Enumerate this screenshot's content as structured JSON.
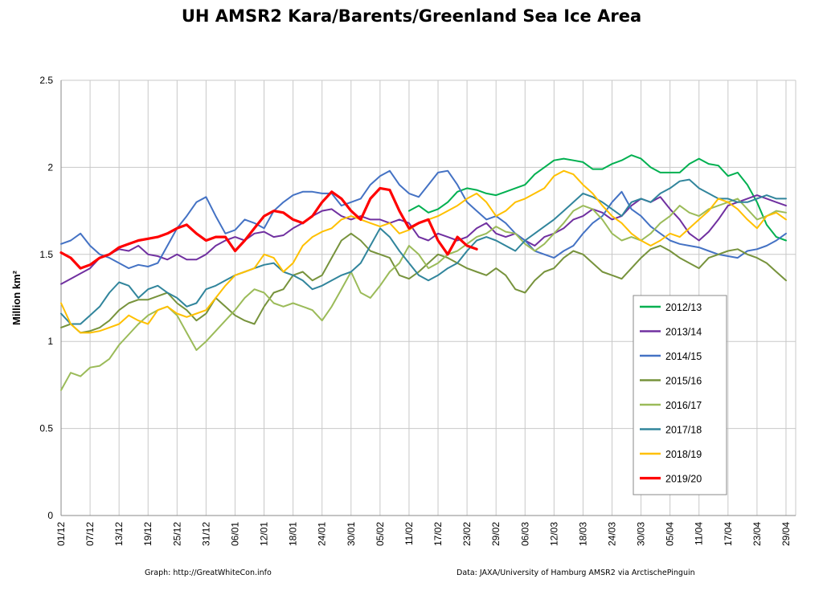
{
  "chart_data": {
    "type": "line",
    "title": "UH AMSR2 Kara/Barents/Greenland Sea Ice Area",
    "xlabel": "",
    "ylabel": "Million km²",
    "ylim": [
      0,
      2.5
    ],
    "yticks": [
      "0",
      "0.5",
      "1",
      "1.5",
      "2",
      "2.5"
    ],
    "x_tick_labels": [
      "01/12",
      "07/12",
      "13/12",
      "19/12",
      "25/12",
      "31/12",
      "06/01",
      "12/01",
      "18/01",
      "24/01",
      "30/01",
      "05/02",
      "11/02",
      "17/02",
      "23/02",
      "29/02",
      "06/03",
      "12/03",
      "18/03",
      "24/03",
      "30/03",
      "05/04",
      "11/04",
      "17/04",
      "23/04",
      "29/04"
    ],
    "x_unit": "day offset from 01/12 (every 2 days)",
    "grid": "vertical every 6 days, horizontal at y ticks",
    "legend_position": "right",
    "series": [
      {
        "name": "2012/13",
        "color": "#00b050",
        "start_day": 72,
        "values": [
          1.75,
          1.78,
          1.74,
          1.76,
          1.8,
          1.86,
          1.88,
          1.87,
          1.85,
          1.84,
          1.86,
          1.88,
          1.9,
          1.96,
          2.0,
          2.04,
          2.05,
          2.04,
          2.03,
          1.99,
          1.99,
          2.02,
          2.04,
          2.07,
          2.05,
          2.0,
          1.97,
          1.97,
          1.97,
          2.02,
          2.05,
          2.02,
          2.01,
          1.95,
          1.97,
          1.9,
          1.8,
          1.67,
          1.6,
          1.58
        ]
      },
      {
        "name": "2013/14",
        "color": "#7030a0",
        "values": [
          1.33,
          1.36,
          1.39,
          1.42,
          1.48,
          1.5,
          1.53,
          1.52,
          1.55,
          1.5,
          1.49,
          1.47,
          1.5,
          1.47,
          1.47,
          1.5,
          1.55,
          1.58,
          1.6,
          1.58,
          1.62,
          1.63,
          1.6,
          1.61,
          1.65,
          1.68,
          1.72,
          1.75,
          1.76,
          1.72,
          1.7,
          1.72,
          1.7,
          1.7,
          1.68,
          1.7,
          1.68,
          1.6,
          1.58,
          1.62,
          1.6,
          1.58,
          1.6,
          1.65,
          1.68,
          1.62,
          1.6,
          1.62,
          1.58,
          1.55,
          1.6,
          1.62,
          1.65,
          1.7,
          1.72,
          1.76,
          1.74,
          1.7,
          1.72,
          1.78,
          1.82,
          1.8,
          1.83,
          1.76,
          1.7,
          1.62,
          1.58,
          1.63,
          1.7,
          1.78,
          1.8,
          1.82,
          1.84,
          1.82,
          1.8,
          1.78
        ]
      },
      {
        "name": "2014/15",
        "color": "#4472c4",
        "values": [
          1.56,
          1.58,
          1.62,
          1.55,
          1.5,
          1.48,
          1.45,
          1.42,
          1.44,
          1.43,
          1.45,
          1.55,
          1.65,
          1.72,
          1.8,
          1.83,
          1.72,
          1.62,
          1.64,
          1.7,
          1.68,
          1.65,
          1.75,
          1.8,
          1.84,
          1.86,
          1.86,
          1.85,
          1.85,
          1.78,
          1.8,
          1.82,
          1.9,
          1.95,
          1.98,
          1.9,
          1.85,
          1.83,
          1.9,
          1.97,
          1.98,
          1.9,
          1.8,
          1.75,
          1.7,
          1.72,
          1.68,
          1.62,
          1.58,
          1.52,
          1.5,
          1.48,
          1.52,
          1.55,
          1.62,
          1.68,
          1.72,
          1.8,
          1.86,
          1.76,
          1.72,
          1.66,
          1.62,
          1.58,
          1.56,
          1.55,
          1.54,
          1.52,
          1.5,
          1.49,
          1.48,
          1.52,
          1.53,
          1.55,
          1.58,
          1.62
        ]
      },
      {
        "name": "2015/16",
        "color": "#77933c",
        "values": [
          1.08,
          1.1,
          1.05,
          1.06,
          1.08,
          1.12,
          1.18,
          1.22,
          1.24,
          1.24,
          1.26,
          1.28,
          1.22,
          1.18,
          1.12,
          1.16,
          1.25,
          1.2,
          1.15,
          1.12,
          1.1,
          1.2,
          1.28,
          1.3,
          1.38,
          1.4,
          1.35,
          1.38,
          1.48,
          1.58,
          1.62,
          1.58,
          1.52,
          1.5,
          1.48,
          1.38,
          1.36,
          1.4,
          1.45,
          1.5,
          1.48,
          1.45,
          1.42,
          1.4,
          1.38,
          1.42,
          1.38,
          1.3,
          1.28,
          1.35,
          1.4,
          1.42,
          1.48,
          1.52,
          1.5,
          1.45,
          1.4,
          1.38,
          1.36,
          1.42,
          1.48,
          1.53,
          1.55,
          1.52,
          1.48,
          1.45,
          1.42,
          1.48,
          1.5,
          1.52,
          1.53,
          1.5,
          1.48,
          1.45,
          1.4,
          1.35
        ]
      },
      {
        "name": "2016/17",
        "color": "#9bbb59",
        "values": [
          0.72,
          0.82,
          0.8,
          0.85,
          0.86,
          0.9,
          0.98,
          1.04,
          1.1,
          1.15,
          1.18,
          1.2,
          1.15,
          1.05,
          0.95,
          1.0,
          1.06,
          1.12,
          1.18,
          1.25,
          1.3,
          1.28,
          1.22,
          1.2,
          1.22,
          1.2,
          1.18,
          1.12,
          1.2,
          1.3,
          1.4,
          1.28,
          1.25,
          1.32,
          1.4,
          1.45,
          1.55,
          1.5,
          1.42,
          1.45,
          1.5,
          1.52,
          1.56,
          1.6,
          1.62,
          1.66,
          1.63,
          1.62,
          1.56,
          1.52,
          1.56,
          1.62,
          1.68,
          1.75,
          1.78,
          1.76,
          1.7,
          1.62,
          1.58,
          1.6,
          1.58,
          1.62,
          1.68,
          1.72,
          1.78,
          1.74,
          1.72,
          1.76,
          1.78,
          1.8,
          1.82,
          1.76,
          1.7,
          1.72,
          1.75,
          1.74
        ]
      },
      {
        "name": "2017/18",
        "color": "#31859c",
        "values": [
          1.16,
          1.1,
          1.1,
          1.15,
          1.2,
          1.28,
          1.34,
          1.32,
          1.25,
          1.3,
          1.32,
          1.28,
          1.25,
          1.2,
          1.22,
          1.3,
          1.32,
          1.35,
          1.38,
          1.4,
          1.42,
          1.44,
          1.45,
          1.4,
          1.38,
          1.35,
          1.3,
          1.32,
          1.35,
          1.38,
          1.4,
          1.45,
          1.55,
          1.65,
          1.6,
          1.52,
          1.45,
          1.38,
          1.35,
          1.38,
          1.42,
          1.45,
          1.52,
          1.58,
          1.6,
          1.58,
          1.55,
          1.52,
          1.58,
          1.62,
          1.66,
          1.7,
          1.75,
          1.8,
          1.85,
          1.83,
          1.8,
          1.76,
          1.72,
          1.8,
          1.82,
          1.8,
          1.85,
          1.88,
          1.92,
          1.93,
          1.88,
          1.85,
          1.82,
          1.82,
          1.8,
          1.8,
          1.82,
          1.84,
          1.82,
          1.82
        ]
      },
      {
        "name": "2018/19",
        "color": "#ffc000",
        "values": [
          1.22,
          1.1,
          1.05,
          1.05,
          1.06,
          1.08,
          1.1,
          1.15,
          1.12,
          1.1,
          1.18,
          1.2,
          1.16,
          1.14,
          1.16,
          1.18,
          1.25,
          1.32,
          1.38,
          1.4,
          1.42,
          1.5,
          1.48,
          1.4,
          1.45,
          1.55,
          1.6,
          1.63,
          1.65,
          1.7,
          1.72,
          1.7,
          1.68,
          1.66,
          1.68,
          1.62,
          1.64,
          1.68,
          1.7,
          1.72,
          1.75,
          1.78,
          1.82,
          1.85,
          1.8,
          1.72,
          1.75,
          1.8,
          1.82,
          1.85,
          1.88,
          1.95,
          1.98,
          1.96,
          1.9,
          1.85,
          1.78,
          1.72,
          1.68,
          1.62,
          1.58,
          1.55,
          1.58,
          1.62,
          1.6,
          1.65,
          1.7,
          1.75,
          1.82,
          1.8,
          1.76,
          1.7,
          1.65,
          1.72,
          1.74,
          1.7
        ]
      },
      {
        "name": "2019/20",
        "color": "#ff0000",
        "width": 3.2,
        "values": [
          1.51,
          1.48,
          1.42,
          1.44,
          1.48,
          1.5,
          1.54,
          1.56,
          1.58,
          1.59,
          1.6,
          1.62,
          1.65,
          1.67,
          1.62,
          1.58,
          1.6,
          1.6,
          1.52,
          1.58,
          1.65,
          1.72,
          1.75,
          1.74,
          1.7,
          1.68,
          1.72,
          1.8,
          1.86,
          1.82,
          1.75,
          1.7,
          1.82,
          1.88,
          1.87,
          1.75,
          1.65,
          1.68,
          1.7,
          1.58,
          1.5,
          1.6,
          1.55,
          1.53
        ]
      }
    ]
  },
  "footer": {
    "left": "Graph: http://GreatWhiteCon.info",
    "right": "Data: JAXA/University of Hamburg AMSR2 via ArctischePinguin"
  }
}
